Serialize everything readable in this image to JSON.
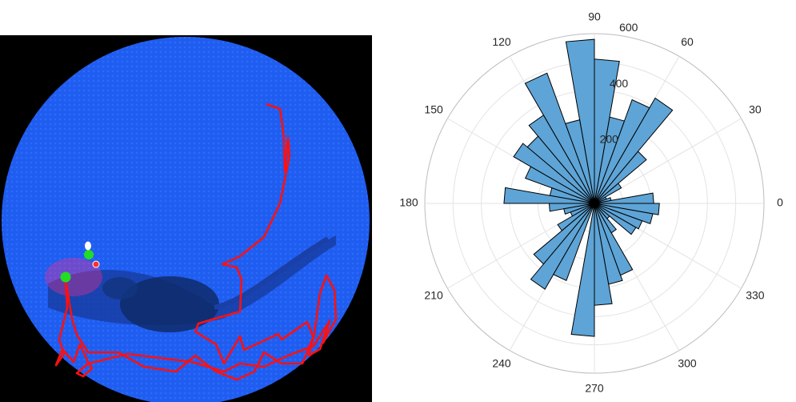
{
  "chart_data": {
    "type": "polar-histogram",
    "theta_ticks": [
      "0",
      "30",
      "60",
      "90",
      "120",
      "150",
      "180",
      "210",
      "240",
      "270",
      "300",
      "330"
    ],
    "r_ticks": [
      "200",
      "400",
      "600"
    ],
    "rlim": [
      0,
      600
    ],
    "bin_width_deg": 10,
    "bin_centers_deg": [
      5,
      15,
      25,
      35,
      45,
      55,
      65,
      75,
      85,
      95,
      105,
      115,
      125,
      135,
      145,
      155,
      165,
      175,
      185,
      195,
      205,
      215,
      225,
      235,
      245,
      265,
      275,
      285,
      295,
      305,
      315,
      325,
      335,
      345,
      355
    ],
    "values": [
      210,
      60,
      45,
      110,
      240,
      430,
      390,
      310,
      510,
      580,
      300,
      490,
      360,
      310,
      330,
      260,
      160,
      320,
      160,
      110,
      90,
      150,
      280,
      350,
      290,
      470,
      360,
      290,
      270,
      120,
      70,
      170,
      180,
      210,
      230
    ],
    "bar_color": "#5ea4d6",
    "edge_color": "#000000",
    "grid": true
  },
  "photo": {
    "arena_color": "#1e5ef0",
    "track_color": "#ff0000",
    "marker_colors": [
      "#22dd22",
      "#ffffff",
      "#ff3030"
    ]
  }
}
